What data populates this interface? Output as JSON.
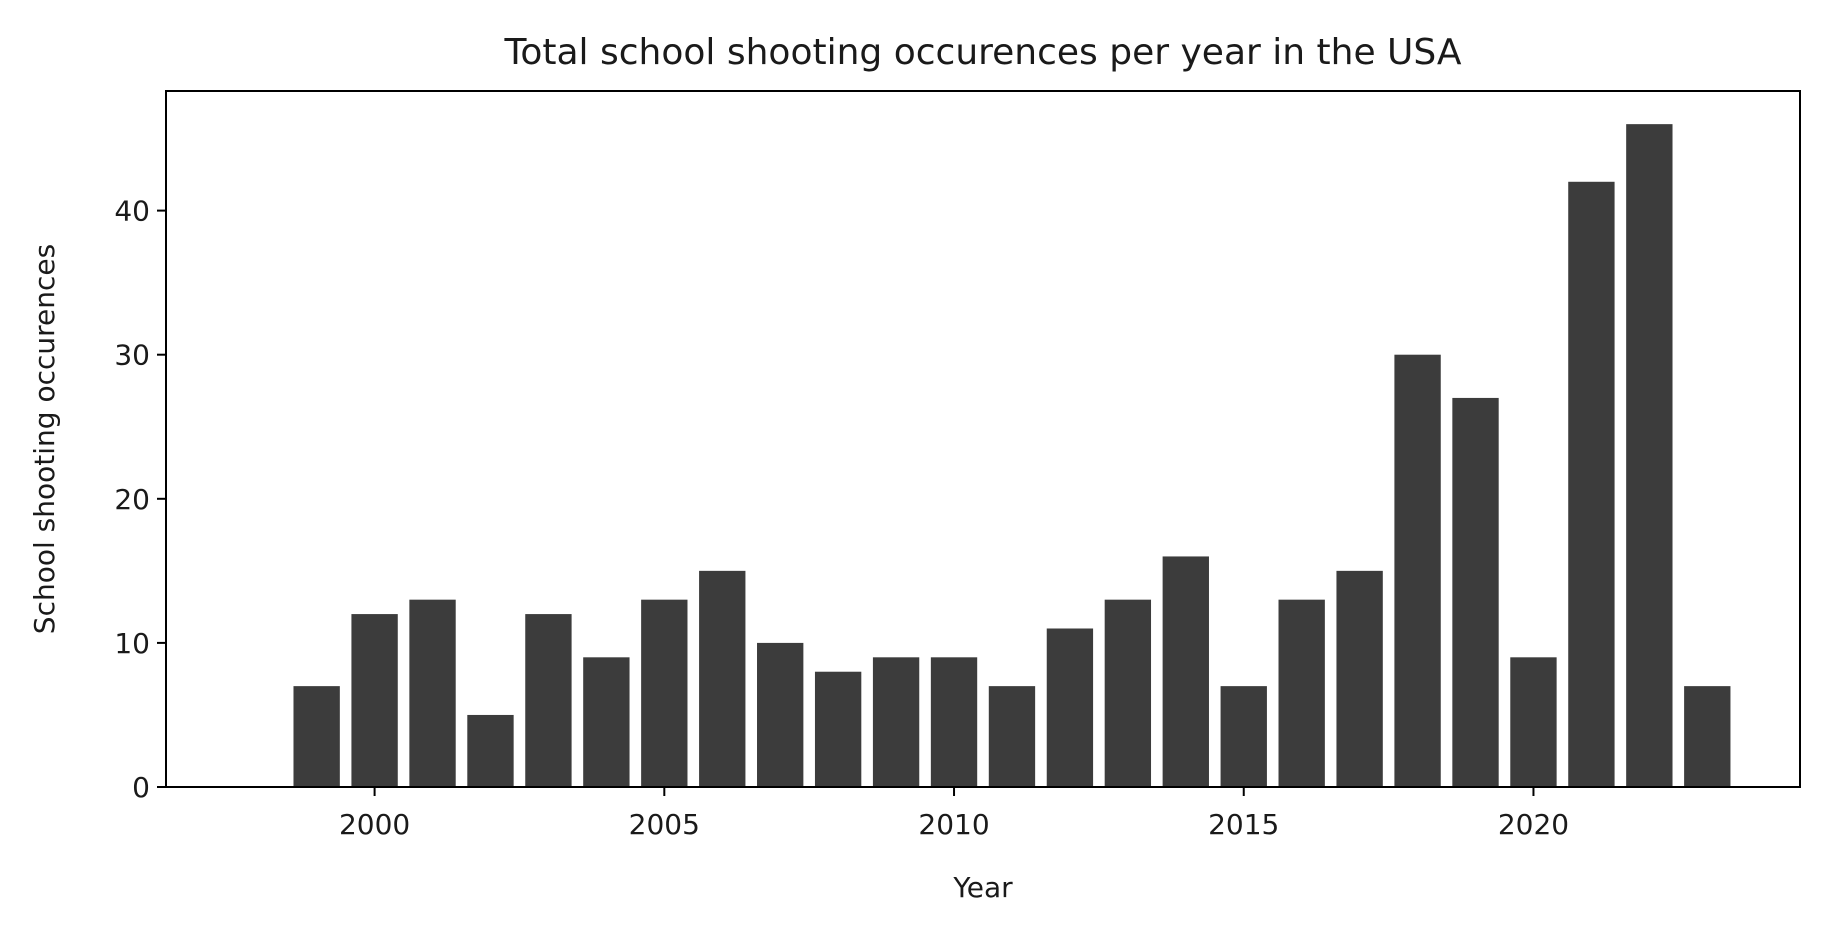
{
  "chart_data": {
    "type": "bar",
    "title": "Total school shooting occurences per year in the USA",
    "xlabel": "Year",
    "ylabel": "School shooting occurences",
    "categories": [
      1999,
      2000,
      2001,
      2002,
      2003,
      2004,
      2005,
      2006,
      2007,
      2008,
      2009,
      2010,
      2011,
      2012,
      2013,
      2014,
      2015,
      2016,
      2017,
      2018,
      2019,
      2020,
      2021,
      2022,
      2023
    ],
    "values": [
      7,
      12,
      13,
      5,
      12,
      9,
      13,
      15,
      10,
      8,
      9,
      9,
      7,
      11,
      13,
      16,
      7,
      13,
      15,
      30,
      27,
      9,
      42,
      46,
      7
    ],
    "xlim": [
      1996.4,
      2024.6
    ],
    "ylim": [
      0,
      48.3
    ],
    "xticks": [
      "2000",
      "2005",
      "2010",
      "2015",
      "2020"
    ],
    "yticks": [
      "0",
      "10",
      "20",
      "30",
      "40"
    ],
    "grid": false,
    "legend": "none",
    "bar_color": "#3c3c3c"
  }
}
